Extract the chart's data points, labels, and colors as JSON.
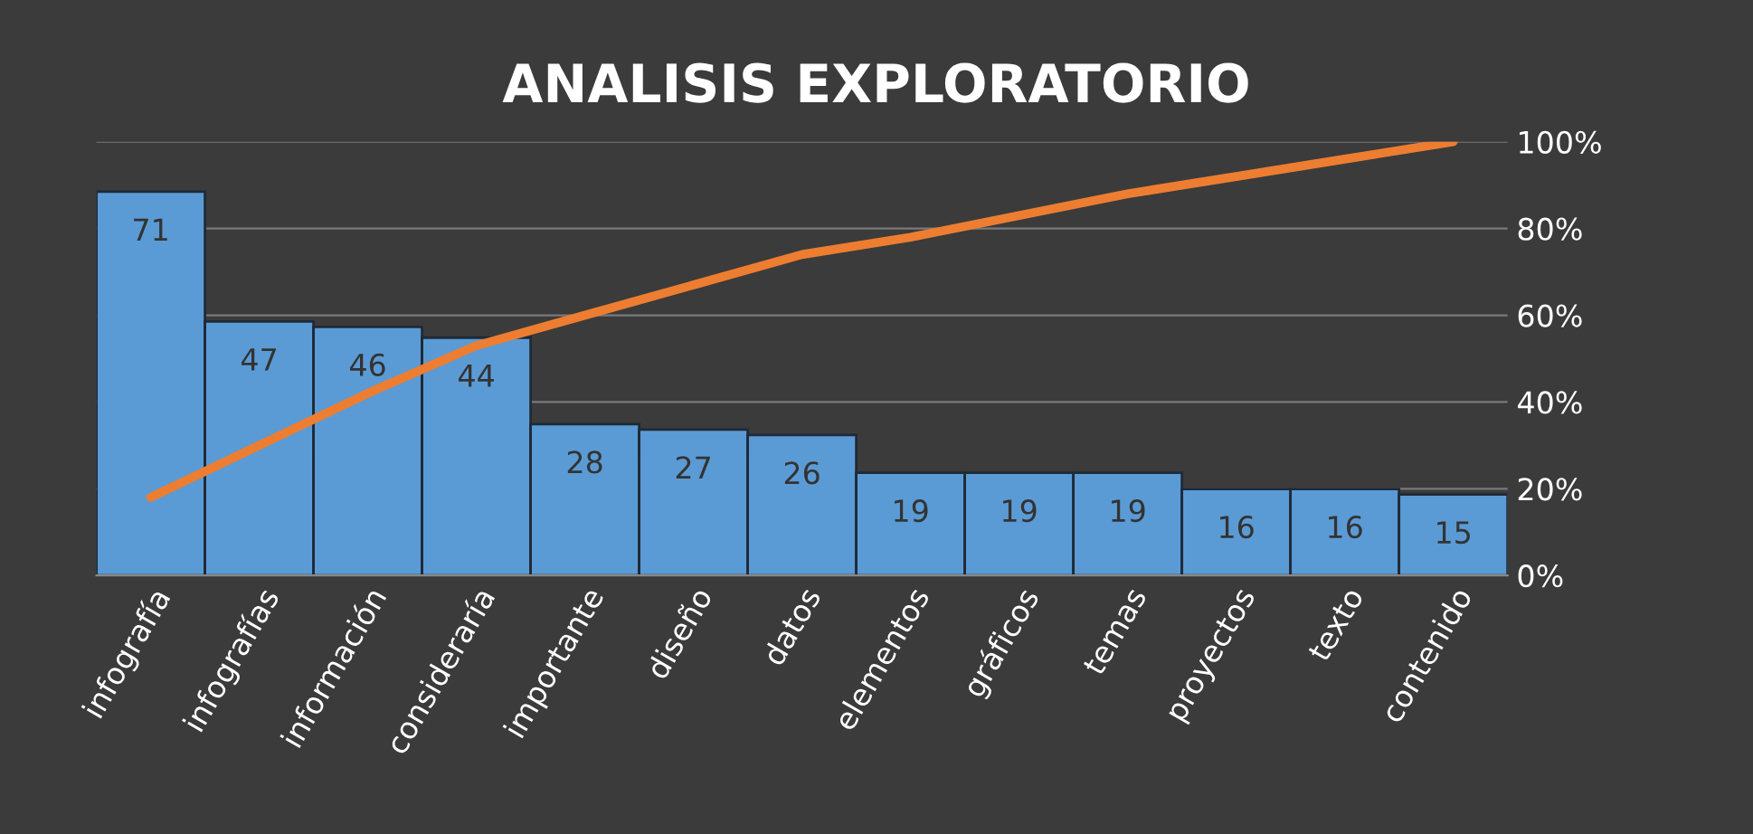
{
  "chart_data": {
    "type": "bar",
    "title": "ANALISIS EXPLORATORIO",
    "categories": [
      "infografía",
      "infografías",
      "información",
      "consideraría",
      "importante",
      "diseño",
      "datos",
      "elementos",
      "gráficos",
      "temas",
      "proyectos",
      "texto",
      "contenido"
    ],
    "series": [
      {
        "color": "#5b9bd5",
        "values": [
          71,
          47,
          46,
          44,
          28,
          27,
          26,
          19,
          19,
          19,
          16,
          16,
          15
        ],
        "value_labels": [
          "71",
          "47",
          "46",
          "44",
          "28",
          "27",
          "26",
          "19",
          "19",
          "19",
          "16",
          "16",
          "15"
        ]
      },
      {
        "type": "line",
        "axis": "y2",
        "color": "#ed7d31",
        "values": [
          18,
          30,
          42,
          53,
          60,
          67,
          74,
          78,
          83,
          88,
          92,
          96,
          100
        ]
      }
    ],
    "y2lim": [
      0,
      100
    ],
    "y2ticks": [
      {
        "value": 0,
        "label": "0%"
      },
      {
        "value": 20,
        "label": "20%"
      },
      {
        "value": 40,
        "label": "40%"
      },
      {
        "value": 60,
        "label": "60%"
      },
      {
        "value": 80,
        "label": "80%"
      },
      {
        "value": 100,
        "label": "100%"
      }
    ],
    "grid": "y",
    "legend": false,
    "marker": "none",
    "line_style": "solid"
  }
}
